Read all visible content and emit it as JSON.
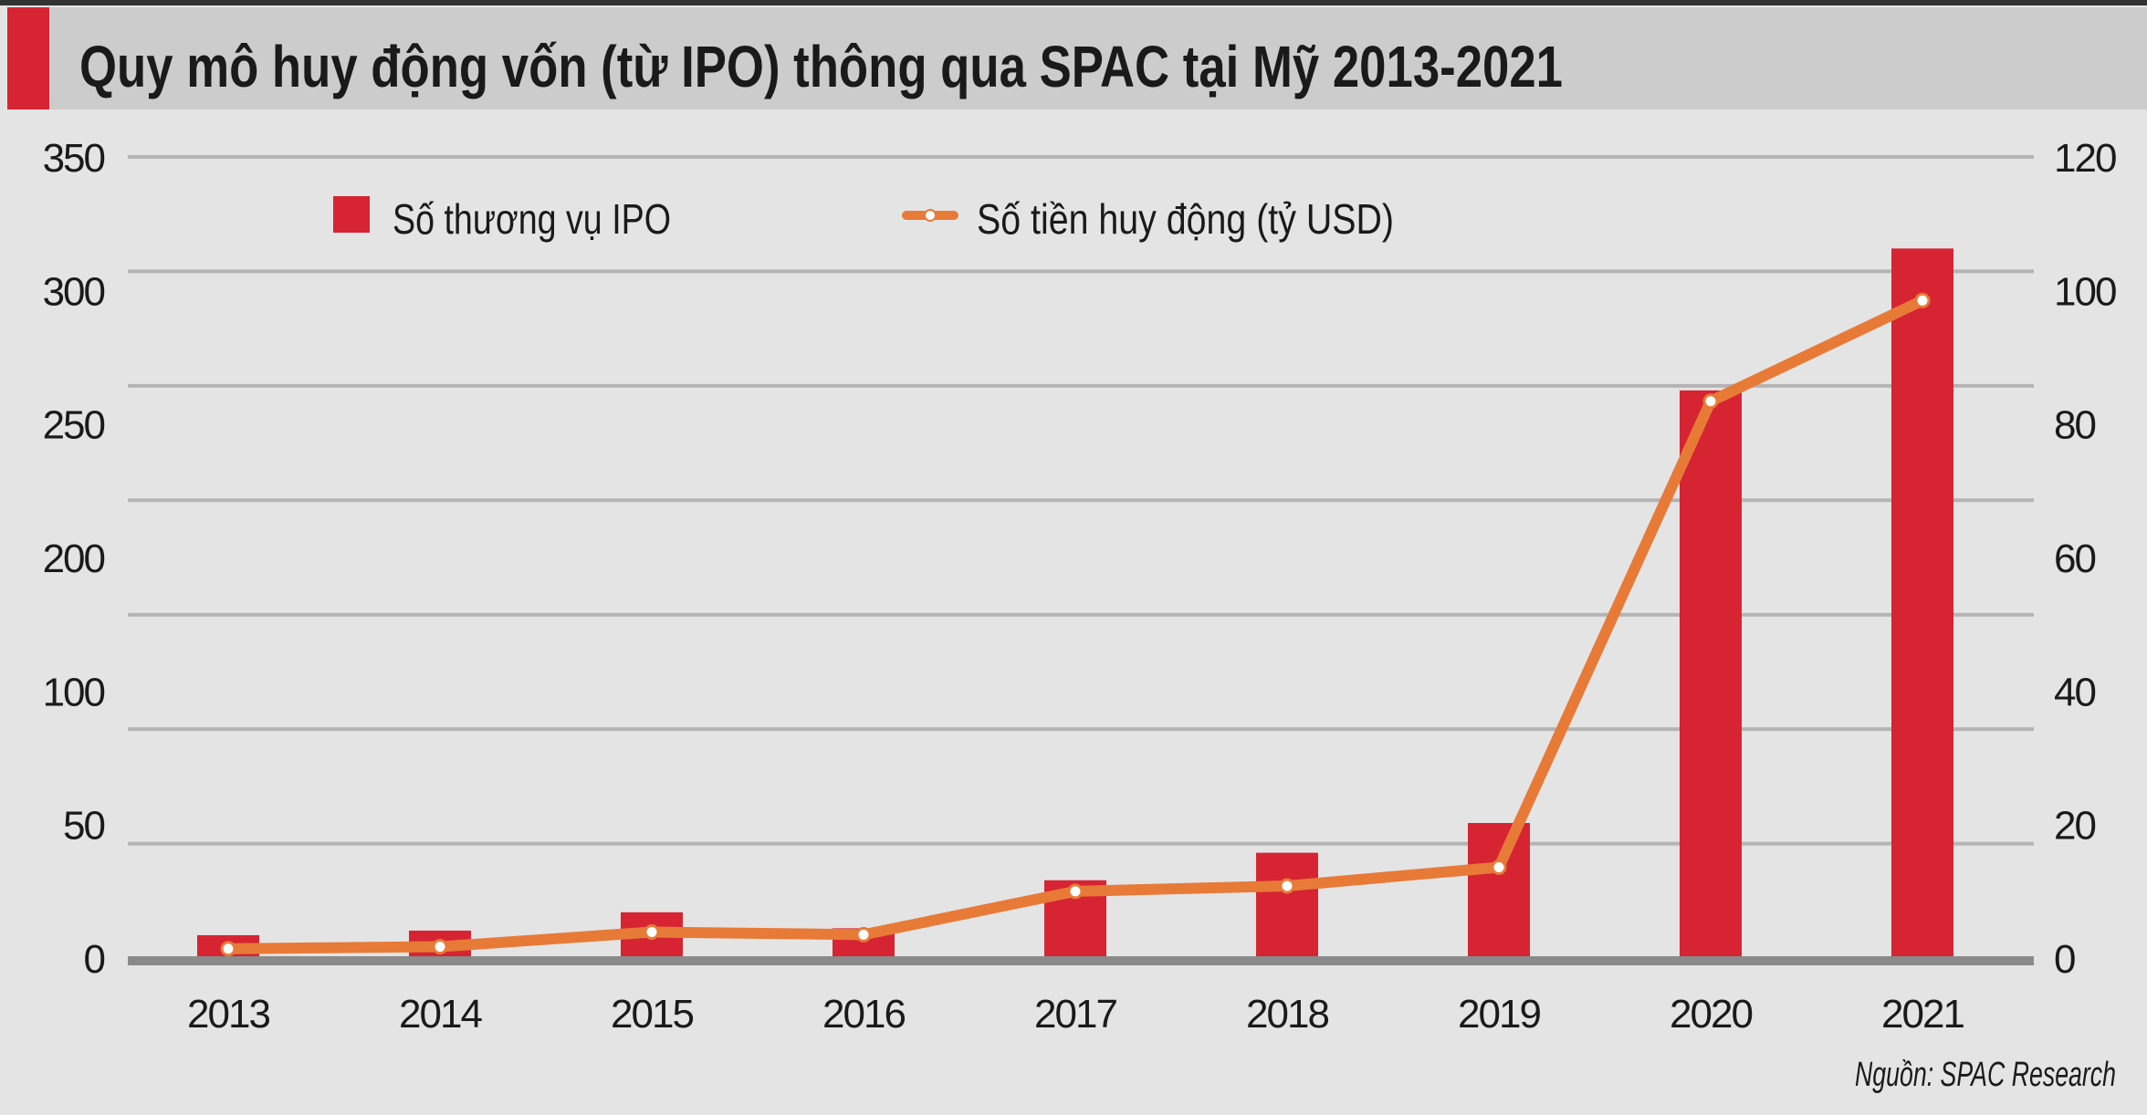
{
  "chart_data": {
    "type": "bar+line",
    "title": "Quy mô huy động vốn (từ IPO) thông qua SPAC tại Mỹ 2013-2021",
    "source": "Nguồn: SPAC Research",
    "categories": [
      "2013",
      "2014",
      "2015",
      "2016",
      "2017",
      "2018",
      "2019",
      "2020",
      "2021"
    ],
    "series": [
      {
        "name": "Số thương vụ IPO",
        "type": "bar",
        "axis": "left",
        "color": "#d62433",
        "values": [
          10,
          12,
          20,
          13,
          34,
          46,
          59,
          248,
          310
        ]
      },
      {
        "name": "Số tiền huy động (tỷ USD)",
        "type": "line",
        "axis": "right",
        "color": "#e87a38",
        "values": [
          1.4,
          1.7,
          3.9,
          3.5,
          10.0,
          10.8,
          13.6,
          83.4,
          98.5
        ]
      }
    ],
    "left_axis": {
      "ylim": [
        0,
        350
      ],
      "tick_labels": [
        "350",
        "300",
        "250",
        "200",
        "100",
        "50",
        "0"
      ],
      "gridline_values": [
        0,
        50,
        100,
        150,
        200,
        250,
        300,
        350
      ]
    },
    "right_axis": {
      "ylim": [
        0,
        120
      ],
      "tick_labels": [
        "120",
        "100",
        "80",
        "60",
        "40",
        "20",
        "0"
      ]
    },
    "grid": true,
    "legend_position": "top"
  },
  "colors": {
    "background": "#e4e4e4",
    "title_bar": "#cccccc",
    "accent": "#d62433",
    "line": "#e87a38",
    "grid": "#b4b4b4",
    "baseline": "#8a8a8a"
  }
}
